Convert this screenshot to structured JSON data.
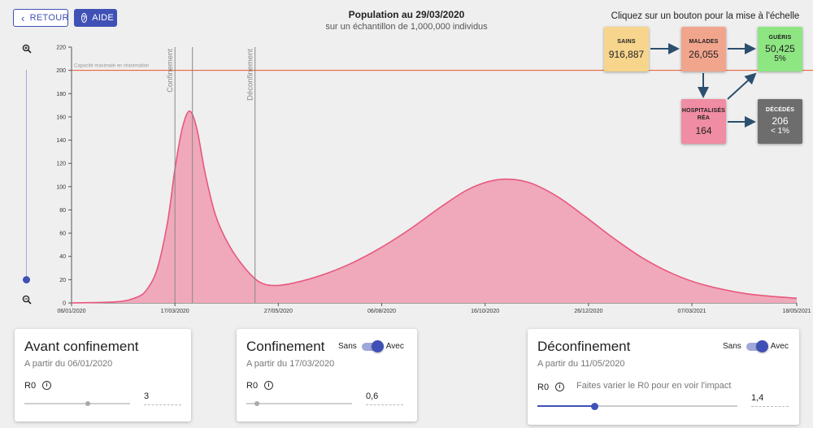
{
  "header": {
    "back_label": "RETOUR",
    "help_label": "AIDE",
    "title": "Population au 29/03/2020",
    "subtitle": "sur un échantillon de 1,000,000 individus",
    "scale_hint": "Cliquez sur un bouton pour la mise à l'échelle"
  },
  "boxes": {
    "sains": {
      "label": "SAINS",
      "value": "916,887",
      "color": "#f7d58d"
    },
    "malades": {
      "label": "MALADES",
      "value": "26,055",
      "color": "#f2a58d"
    },
    "gueris": {
      "label": "GUÉRIS",
      "value": "50,425",
      "sub": "5%",
      "color": "#8ee683"
    },
    "hosp": {
      "label": "HOSPITALISÉS",
      "label2": "RÉA",
      "value": "164",
      "color": "#f08ca3"
    },
    "deces": {
      "label": "DÉCÉDÉS",
      "value": "206",
      "sub": "< 1%",
      "color": "#6d6d6d"
    }
  },
  "chart_data": {
    "type": "area",
    "series_color": "#e8577e",
    "fill_color": "#efa9ba",
    "capacity_color": "#e8552b",
    "ylim": [
      0,
      220
    ],
    "yticks": [
      0,
      20,
      40,
      60,
      80,
      100,
      120,
      140,
      160,
      180,
      200,
      220
    ],
    "xticks": [
      "06/01/2020",
      "17/03/2020",
      "27/05/2020",
      "06/08/2020",
      "16/10/2020",
      "26/12/2020",
      "07/03/2021",
      "18/05/2021"
    ],
    "capacity": {
      "value": 200,
      "label": "Capacité maximale en réanimation"
    },
    "events": [
      {
        "label": "Confinement",
        "date": "17/03/2020"
      },
      {
        "label": "",
        "date": "29/03/2020"
      },
      {
        "label": "Déconfinement",
        "date": "11/05/2020"
      }
    ],
    "points": [
      [
        "06/01/2020",
        0
      ],
      [
        "06/02/2020",
        1
      ],
      [
        "20/02/2020",
        5
      ],
      [
        "27/02/2020",
        12
      ],
      [
        "05/03/2020",
        30
      ],
      [
        "12/03/2020",
        70
      ],
      [
        "17/03/2020",
        115
      ],
      [
        "22/03/2020",
        150
      ],
      [
        "27/03/2020",
        165
      ],
      [
        "01/04/2020",
        150
      ],
      [
        "07/04/2020",
        110
      ],
      [
        "14/04/2020",
        75
      ],
      [
        "23/04/2020",
        50
      ],
      [
        "04/05/2020",
        30
      ],
      [
        "14/05/2020",
        18
      ],
      [
        "24/05/2020",
        15
      ],
      [
        "06/06/2020",
        17
      ],
      [
        "26/06/2020",
        24
      ],
      [
        "16/07/2020",
        34
      ],
      [
        "06/08/2020",
        48
      ],
      [
        "26/08/2020",
        64
      ],
      [
        "15/09/2020",
        82
      ],
      [
        "05/10/2020",
        98
      ],
      [
        "25/10/2020",
        106
      ],
      [
        "14/11/2020",
        104
      ],
      [
        "04/12/2020",
        92
      ],
      [
        "24/12/2020",
        74
      ],
      [
        "13/01/2021",
        55
      ],
      [
        "02/02/2021",
        38
      ],
      [
        "22/02/2021",
        25
      ],
      [
        "14/03/2021",
        16
      ],
      [
        "13/04/2021",
        8
      ],
      [
        "18/05/2021",
        4
      ]
    ]
  },
  "cards": {
    "avant": {
      "title": "Avant confinement",
      "since": "A partir du 06/01/2020",
      "r0_label": "R0",
      "r0_value": "3",
      "r0_fraction": 0.6
    },
    "conf": {
      "title": "Confinement",
      "since": "A partir du 17/03/2020",
      "r0_label": "R0",
      "r0_value": "0,6",
      "r0_fraction": 0.1,
      "toggle_off": "Sans",
      "toggle_on": "Avec"
    },
    "deconf": {
      "title": "Déconfinement",
      "since": "A partir du 11/05/2020",
      "r0_label": "R0",
      "r0_value": "1,4",
      "r0_fraction": 0.28,
      "hint": "Faites varier le R0 pour en voir l'impact",
      "toggle_off": "Sans",
      "toggle_on": "Avec"
    }
  }
}
